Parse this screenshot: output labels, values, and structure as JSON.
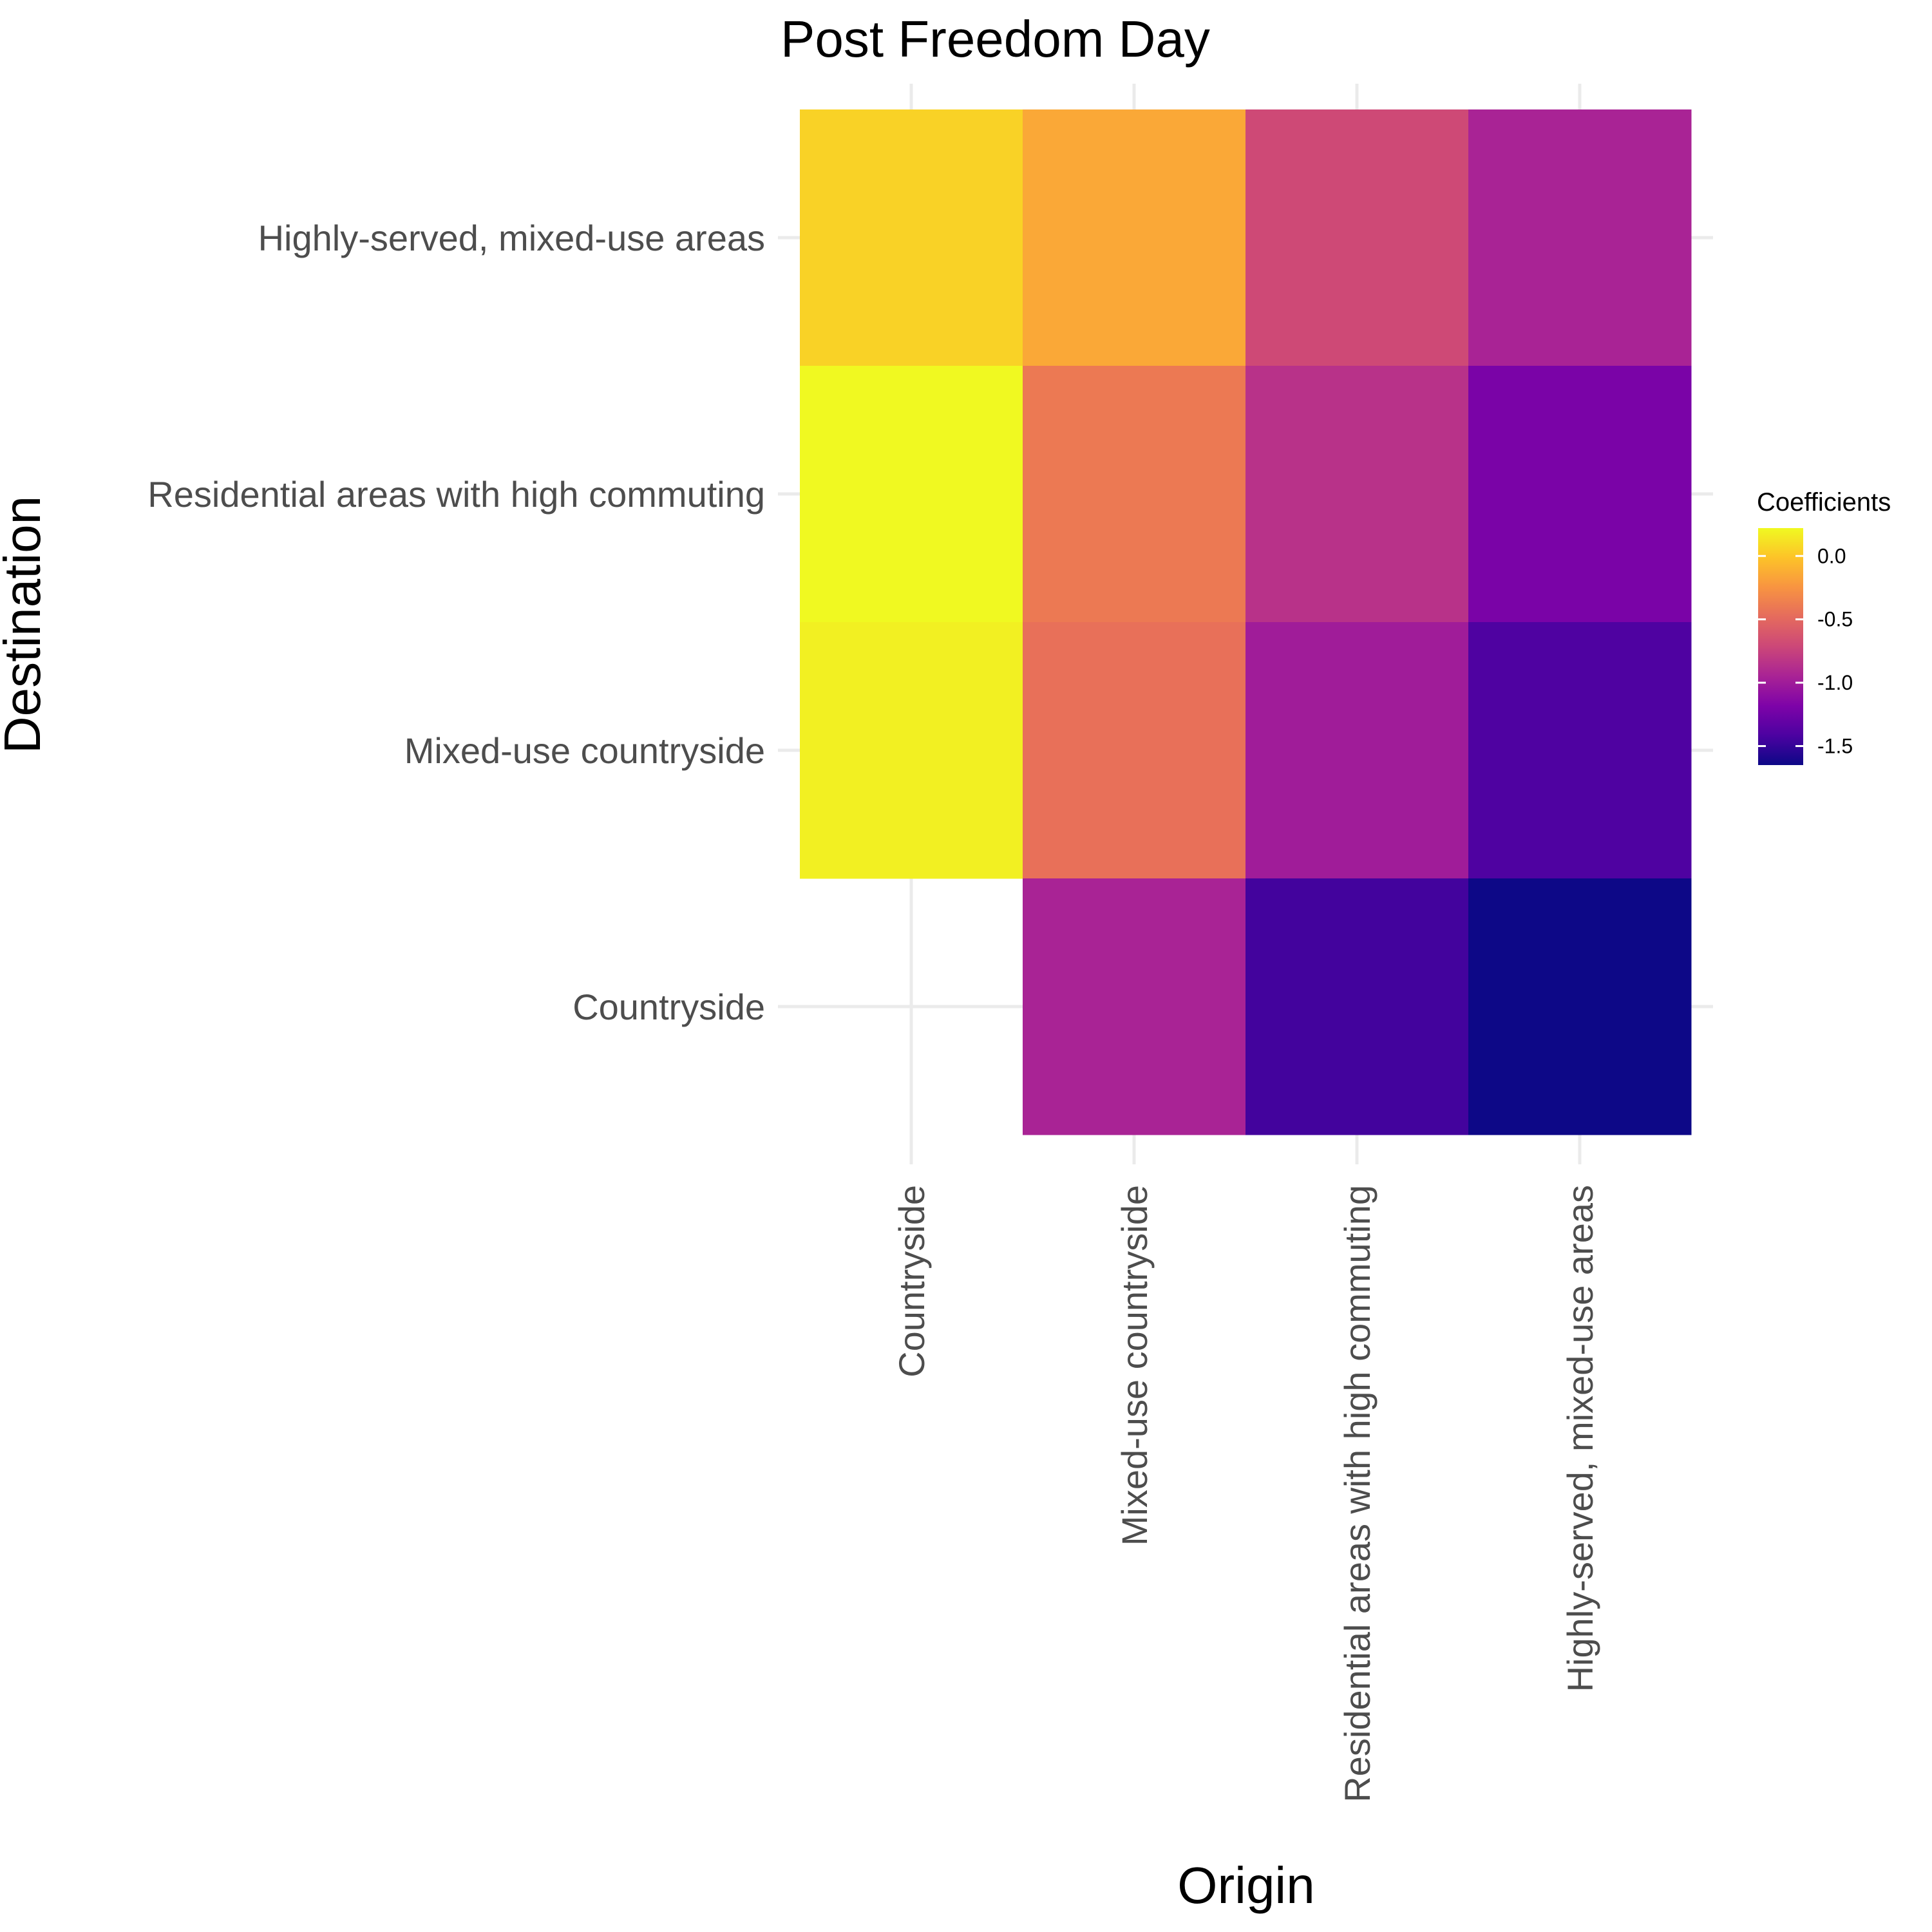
{
  "chart_data": {
    "type": "heatmap",
    "title": "Post Freedom Day",
    "xlabel": "Origin",
    "ylabel": "Destination",
    "x_categories": [
      "Countryside",
      "Mixed-use countryside",
      "Residential areas with high commuting",
      "Highly-served, mixed-use areas"
    ],
    "y_categories": [
      "Highly-served, mixed-use areas",
      "Residential areas with high commuting",
      "Mixed-use countryside",
      "Countryside"
    ],
    "values": [
      [
        0.05,
        -0.15,
        -0.7,
        -0.95
      ],
      [
        0.22,
        -0.4,
        -0.85,
        -1.2
      ],
      [
        0.18,
        -0.45,
        -1.0,
        -1.4
      ],
      [
        null,
        -0.95,
        -1.45,
        -1.65
      ]
    ],
    "legend": {
      "title": "Coefficients",
      "ticks": [
        "0.0",
        "-0.5",
        "-1.0",
        "-1.5"
      ],
      "tick_values": [
        0.0,
        -0.5,
        -1.0,
        -1.5
      ],
      "range": [
        -1.65,
        0.22
      ],
      "position": "right"
    },
    "colormap": "plasma",
    "grid": true
  }
}
